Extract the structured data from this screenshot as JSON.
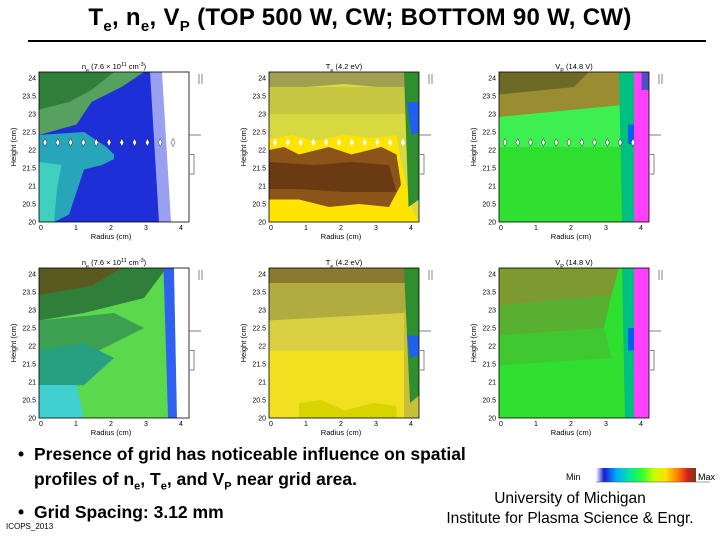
{
  "title": {
    "pre": "T",
    "s1": "e",
    "mid1": ", n",
    "s2": "e",
    "mid2": ", V",
    "s3": "P",
    "post": " (TOP 500 W, CW;  BOTTOM 90 W, CW)"
  },
  "panels": [
    {
      "header": "n",
      "header_sub": "e",
      "header_rest": " (7.6 × 10",
      "header_sup": "11",
      "header_end": " cm",
      "header_sup2": "-3",
      "header_close": ")",
      "ylabel": "Height (cm)",
      "xlabel": "Radius (cm)",
      "scheme": "ne-top"
    },
    {
      "header": "T",
      "header_sub": "e",
      "header_rest": " (4.2 eV)",
      "ylabel": "Height (cm)",
      "xlabel": "Radius (cm)",
      "scheme": "te-top"
    },
    {
      "header": "V",
      "header_sub": "P",
      "header_rest": " (14.8 V)",
      "ylabel": "Height (cm)",
      "xlabel": "Radius (cm)",
      "scheme": "vp-top"
    },
    {
      "header": "n",
      "header_sub": "e",
      "header_rest": " (7.6 × 10",
      "header_sup": "11",
      "header_end": " cm",
      "header_sup2": "-3",
      "header_close": ")",
      "ylabel": "Height (cm)",
      "xlabel": "Radius (cm)",
      "scheme": "ne-bot"
    },
    {
      "header": "T",
      "header_sub": "e",
      "header_rest": " (4.2 eV)",
      "ylabel": "Height (cm)",
      "xlabel": "Radius (cm)",
      "scheme": "te-bot"
    },
    {
      "header": "V",
      "header_sub": "P",
      "header_rest": " (14.8 V)",
      "ylabel": "Height (cm)",
      "xlabel": "Radius (cm)",
      "scheme": "vp-bot"
    }
  ],
  "y_ticks": [
    "24",
    "23.5",
    "23",
    "22.5",
    "22",
    "21.5",
    "21",
    "20.5",
    "20"
  ],
  "x_ticks": [
    "0",
    "1",
    "2",
    "3",
    "4"
  ],
  "bullets": {
    "b1_line1": "Presence of grid has noticeable influence on spatial",
    "b1_line2_pre": "profiles of n",
    "b1_s1": "e",
    "b1_mid": ", T",
    "b1_s2": "e",
    "b1_mid2": ", and V",
    "b1_s3": "P",
    "b1_end": " near grid area.",
    "b2": "Grid Spacing: 3.12 mm"
  },
  "legend": {
    "min": "Min",
    "max": "Max"
  },
  "affiliation": {
    "line1": "University of Michigan",
    "line2": "Institute for Plasma Science & Engr."
  },
  "footer": "ICOPS_2013",
  "colors": {
    "palette": [
      "#ffffff",
      "#1010d0",
      "#00a0ff",
      "#00e0a0",
      "#30ff30",
      "#c8ff00",
      "#ffe000",
      "#ff8000",
      "#d02020",
      "#7a3a10",
      "#ff40ff"
    ]
  }
}
